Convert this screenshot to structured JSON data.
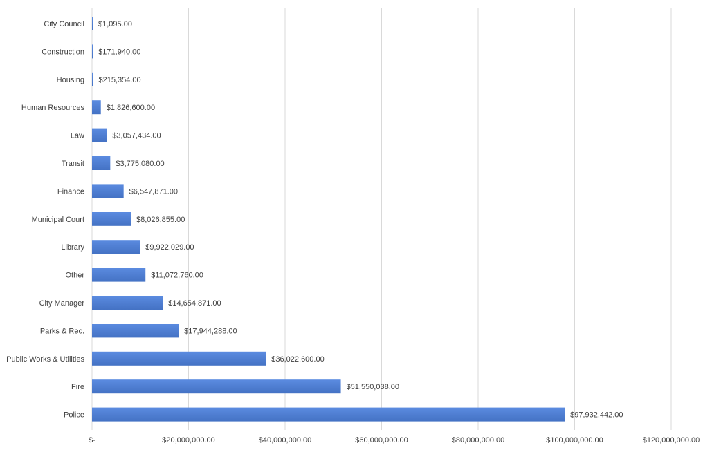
{
  "chart_data": {
    "type": "bar",
    "orientation": "horizontal",
    "categories": [
      "City Council",
      "Construction",
      "Housing",
      "Human Resources",
      "Law",
      "Transit",
      "Finance",
      "Municipal Court",
      "Library",
      "Other",
      "City Manager",
      "Parks & Rec.",
      "Public Works & Utilities",
      "Fire",
      "Police"
    ],
    "values": [
      1095,
      171940,
      215354,
      1826600,
      3057434,
      3775080,
      6547871,
      8026855,
      9922029,
      11072760,
      14654871,
      17944288,
      36022600,
      51550038,
      97932442
    ],
    "data_labels": [
      "$1,095.00",
      "$171,940.00",
      "$215,354.00",
      "$1,826,600.00",
      "$3,057,434.00",
      "$3,775,080.00",
      "$6,547,871.00",
      "$8,026,855.00",
      "$9,922,029.00",
      "$11,072,760.00",
      "$14,654,871.00",
      "$17,944,288.00",
      "$36,022,600.00",
      "$51,550,038.00",
      "$97,932,442.00"
    ],
    "xlim": [
      0,
      120000000
    ],
    "x_ticks": [
      0,
      20000000,
      40000000,
      60000000,
      80000000,
      100000000,
      120000000
    ],
    "x_tick_labels": [
      "$-",
      "$20,000,000.00",
      "$40,000,000.00",
      "$60,000,000.00",
      "$80,000,000.00",
      "$100,000,000.00",
      "$120,000,000.00"
    ],
    "grid": "vertical",
    "legend": "none",
    "colors": {
      "bar": "#4472c4",
      "bar_light": "#5b8be0",
      "grid": "#d9d9d9",
      "text": "#404040"
    }
  }
}
